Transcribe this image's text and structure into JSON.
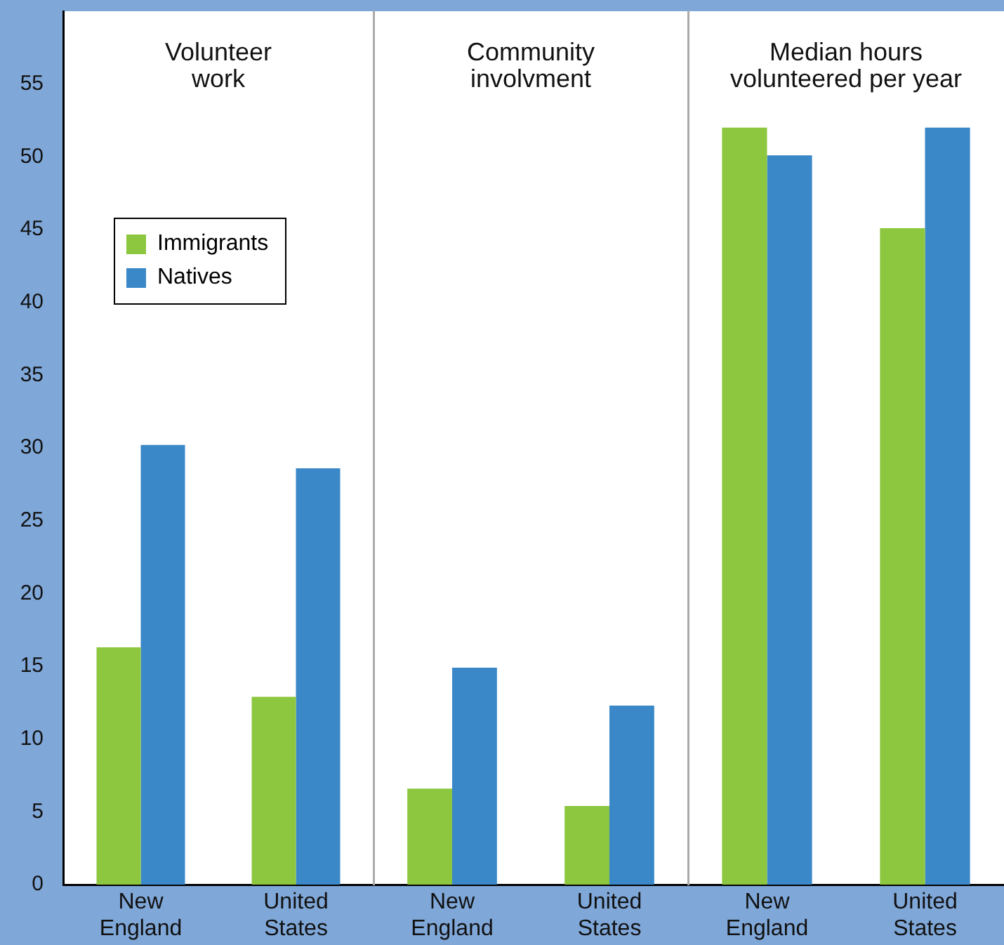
{
  "chart_data": [
    {
      "type": "bar",
      "title": "Volunteer\nwork",
      "categories": [
        "New England",
        "United States"
      ],
      "series": [
        {
          "name": "Immigrants",
          "color": "#8dc63f",
          "values": [
            16.3,
            12.9
          ]
        },
        {
          "name": "Natives",
          "color": "#3a88c8",
          "values": [
            30.2,
            28.6
          ]
        }
      ],
      "ylim": [
        0,
        60
      ],
      "yticks": [
        0,
        5,
        10,
        15,
        20,
        25,
        30,
        35,
        40,
        45,
        50,
        55
      ],
      "legend": "top left",
      "grid": false
    },
    {
      "type": "bar",
      "title": "Community\ninvolvment",
      "categories": [
        "New England",
        "United States"
      ],
      "series": [
        {
          "color": "#8dc63f",
          "values": [
            6.6,
            5.4
          ]
        },
        {
          "color": "#3a88c8",
          "values": [
            14.9,
            12.3
          ]
        }
      ],
      "ylim": [
        0,
        60
      ],
      "tick_labels": "x",
      "grid": false
    },
    {
      "type": "bar",
      "title": "Median hours\nvolunteered per year",
      "categories": [
        "New England",
        "United States"
      ],
      "series": [
        {
          "color": "#8dc63f",
          "values": [
            52,
            45.1
          ]
        },
        {
          "color": "#3a88c8",
          "values": [
            50.1,
            52
          ]
        }
      ],
      "ylim": [
        0,
        60
      ],
      "tick_labels": "x",
      "grid": false
    }
  ]
}
